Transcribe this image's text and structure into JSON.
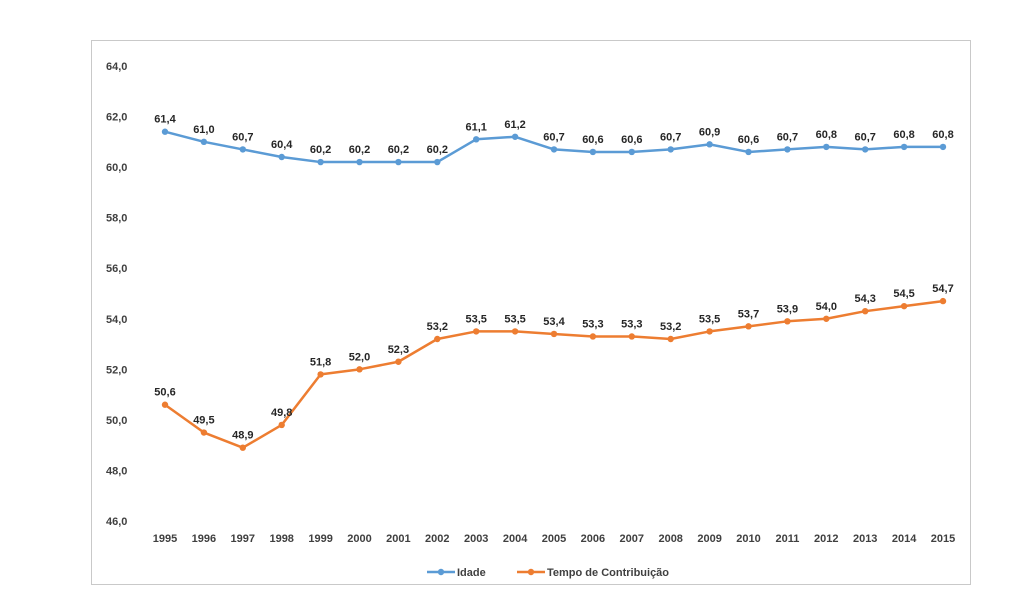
{
  "chart_data": {
    "type": "line",
    "title": "",
    "xlabel": "",
    "ylabel": "",
    "ylim": [
      46,
      64
    ],
    "yticks": [
      46,
      48,
      50,
      52,
      54,
      56,
      58,
      60,
      62,
      64
    ],
    "ytick_labels": [
      "46,0",
      "48,0",
      "50,0",
      "52,0",
      "54,0",
      "56,0",
      "58,0",
      "60,0",
      "62,0",
      "64,0"
    ],
    "grid": false,
    "legend_position": "bottom",
    "categories": [
      "1995",
      "1996",
      "1997",
      "1998",
      "1999",
      "2000",
      "2001",
      "2002",
      "2003",
      "2004",
      "2005",
      "2006",
      "2007",
      "2008",
      "2009",
      "2010",
      "2011",
      "2012",
      "2013",
      "2014",
      "2015"
    ],
    "series": [
      {
        "name": "Idade",
        "color": "#5b9bd5",
        "values": [
          61.4,
          61.0,
          60.7,
          60.4,
          60.2,
          60.2,
          60.2,
          60.2,
          61.1,
          61.2,
          60.7,
          60.6,
          60.6,
          60.7,
          60.9,
          60.6,
          60.7,
          60.8,
          60.7,
          60.8,
          60.8
        ],
        "labels": [
          "61,4",
          "61,0",
          "60,7",
          "60,4",
          "60,2",
          "60,2",
          "60,2",
          "60,2",
          "61,1",
          "61,2",
          "60,7",
          "60,6",
          "60,6",
          "60,7",
          "60,9",
          "60,6",
          "60,7",
          "60,8",
          "60,7",
          "60,8",
          "60,8"
        ]
      },
      {
        "name": "Tempo de Contribuição",
        "color": "#ed7d31",
        "values": [
          50.6,
          49.5,
          48.9,
          49.8,
          51.8,
          52.0,
          52.3,
          53.2,
          53.5,
          53.5,
          53.4,
          53.3,
          53.3,
          53.2,
          53.5,
          53.7,
          53.9,
          54.0,
          54.3,
          54.5,
          54.7
        ],
        "labels": [
          "50,6",
          "49,5",
          "48,9",
          "49,8",
          "51,8",
          "52,0",
          "52,3",
          "53,2",
          "53,5",
          "53,5",
          "53,4",
          "53,3",
          "53,3",
          "53,2",
          "53,5",
          "53,7",
          "53,9",
          "54,0",
          "54,3",
          "54,5",
          "54,7"
        ]
      }
    ]
  }
}
